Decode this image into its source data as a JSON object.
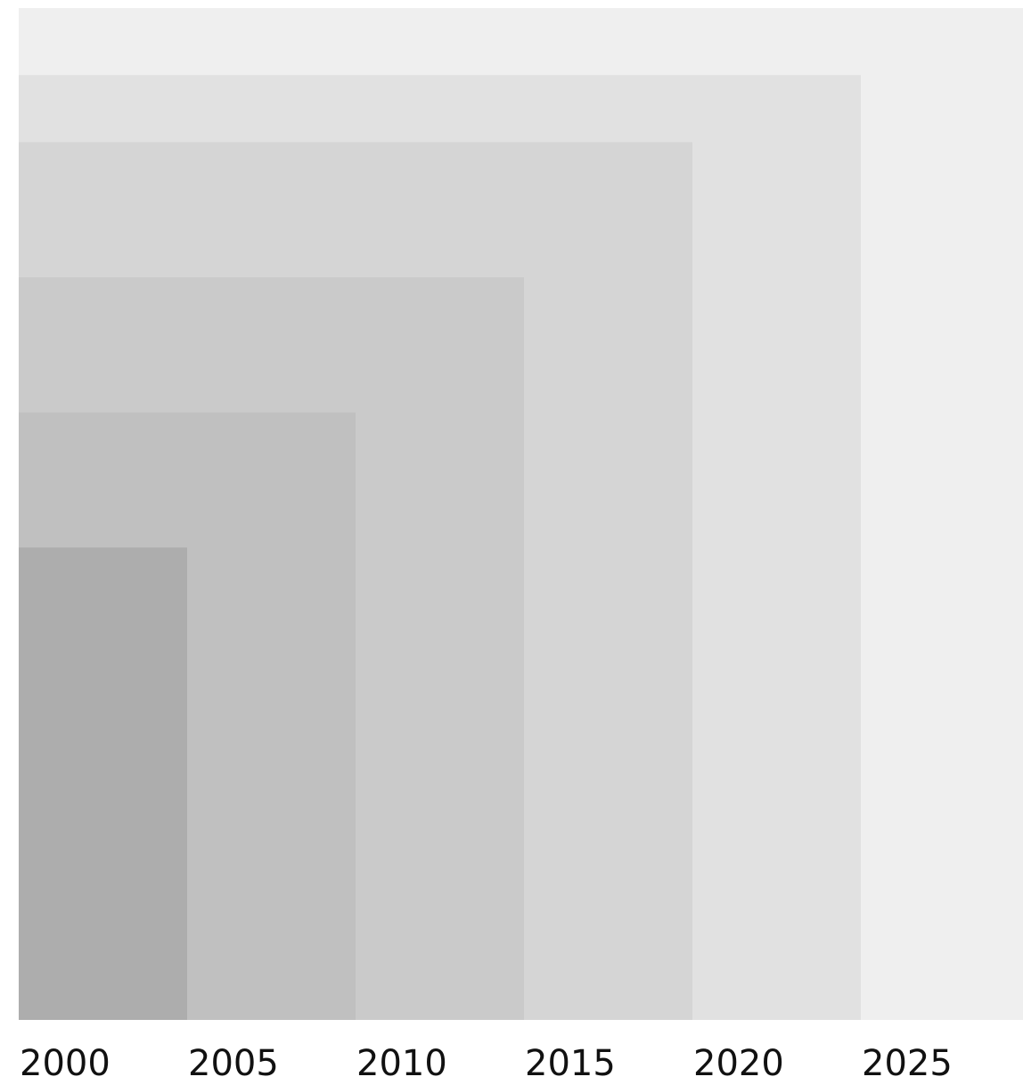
{
  "chart_data": {
    "type": "area",
    "title": "",
    "xlabel": "",
    "ylabel": "",
    "grid": false,
    "legend": "none",
    "x_ticks": [
      "2000",
      "2005",
      "2010",
      "2015",
      "2020",
      "2025"
    ],
    "bands": [
      {
        "from_year": 2000,
        "to_year": 2005,
        "ratio": 0.5,
        "color": "#adadad"
      },
      {
        "from_year": 2000,
        "to_year": 2010,
        "ratio": 0.643,
        "color": "#c0c0c0"
      },
      {
        "from_year": 2000,
        "to_year": 2015,
        "ratio": 0.786,
        "color": "#cacaca"
      },
      {
        "from_year": 2000,
        "to_year": 2020,
        "ratio": 0.929,
        "color": "#d5d5d5"
      },
      {
        "from_year": 2000,
        "to_year": 2025,
        "ratio": 1.0,
        "color": "#e1e1e1"
      },
      {
        "from_year": 2000,
        "to_year": 2030,
        "ratio": 1.071,
        "color": "#efefef"
      }
    ]
  }
}
